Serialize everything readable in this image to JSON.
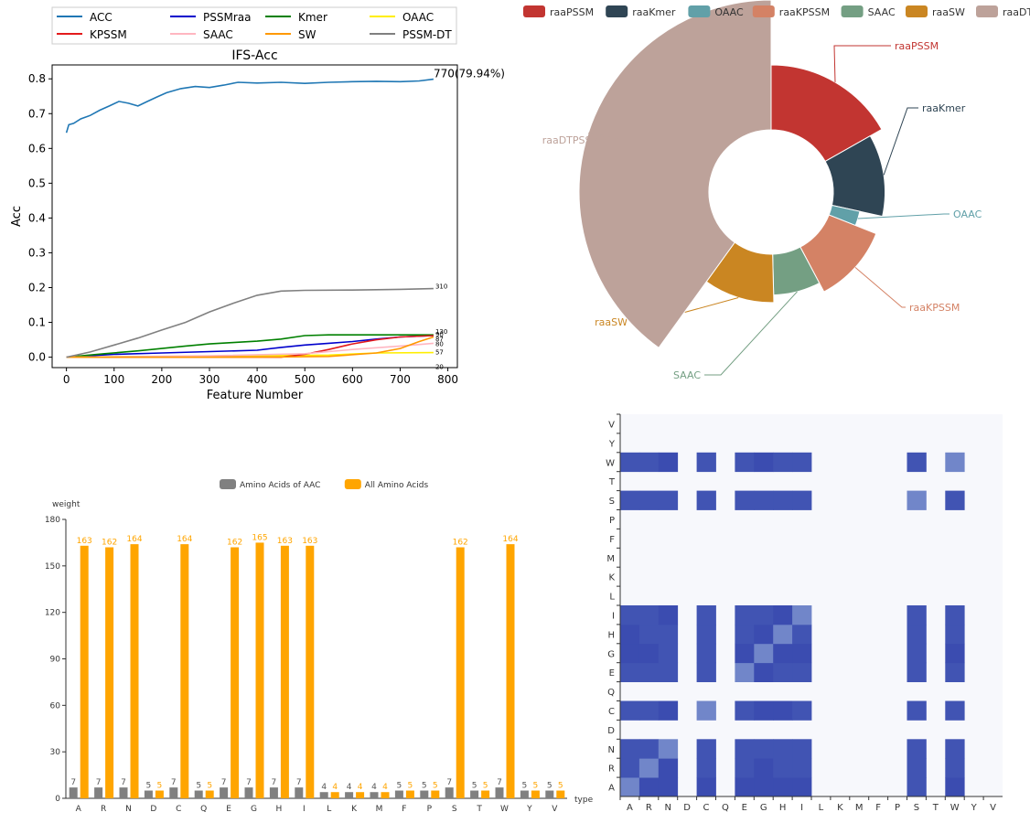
{
  "chart_data": [
    {
      "type": "line",
      "title": "IFS-Acc",
      "xlabel": "Feature Number",
      "ylabel": "Acc",
      "xlim": [
        -30,
        820
      ],
      "ylim": [
        -0.03,
        0.84
      ],
      "xticks": [
        0,
        100,
        200,
        300,
        400,
        500,
        600,
        700,
        800
      ],
      "yticks": [
        0.0,
        0.1,
        0.2,
        0.3,
        0.4,
        0.5,
        0.6,
        0.7,
        0.8
      ],
      "grid": false,
      "legend_position": "top (above plot)",
      "annotation": "770(79.94%)",
      "series": [
        {
          "name": "ACC",
          "color": "#1f77b4",
          "points": [
            [
              0,
              0.645
            ],
            [
              5,
              0.668
            ],
            [
              15,
              0.672
            ],
            [
              30,
              0.685
            ],
            [
              50,
              0.695
            ],
            [
              70,
              0.71
            ],
            [
              90,
              0.722
            ],
            [
              110,
              0.735
            ],
            [
              130,
              0.73
            ],
            [
              150,
              0.722
            ],
            [
              170,
              0.735
            ],
            [
              190,
              0.748
            ],
            [
              210,
              0.76
            ],
            [
              240,
              0.772
            ],
            [
              270,
              0.778
            ],
            [
              300,
              0.775
            ],
            [
              330,
              0.782
            ],
            [
              360,
              0.79
            ],
            [
              400,
              0.788
            ],
            [
              450,
              0.79
            ],
            [
              500,
              0.787
            ],
            [
              550,
              0.79
            ],
            [
              600,
              0.792
            ],
            [
              650,
              0.793
            ],
            [
              700,
              0.792
            ],
            [
              740,
              0.794
            ],
            [
              770,
              0.799
            ]
          ],
          "end_label": ""
        },
        {
          "name": "PSSMraa",
          "color": "#0000cc",
          "points": [
            [
              0,
              0
            ],
            [
              100,
              0.008
            ],
            [
              200,
              0.012
            ],
            [
              300,
              0.016
            ],
            [
              400,
              0.02
            ],
            [
              450,
              0.028
            ],
            [
              500,
              0.035
            ],
            [
              550,
              0.04
            ],
            [
              600,
              0.045
            ],
            [
              650,
              0.052
            ],
            [
              700,
              0.058
            ],
            [
              770,
              0.062
            ]
          ],
          "end_label": "130"
        },
        {
          "name": "Kmer",
          "color": "#008000",
          "points": [
            [
              0,
              0
            ],
            [
              80,
              0.01
            ],
            [
              150,
              0.018
            ],
            [
              200,
              0.025
            ],
            [
              250,
              0.032
            ],
            [
              300,
              0.038
            ],
            [
              350,
              0.042
            ],
            [
              400,
              0.046
            ],
            [
              450,
              0.052
            ],
            [
              500,
              0.062
            ],
            [
              550,
              0.064
            ],
            [
              770,
              0.064
            ]
          ],
          "end_label": "90"
        },
        {
          "name": "OAAC",
          "color": "#ffee00",
          "points": [
            [
              0,
              0
            ],
            [
              200,
              0.002
            ],
            [
              400,
              0.004
            ],
            [
              550,
              0.006
            ],
            [
              650,
              0.012
            ],
            [
              770,
              0.013
            ]
          ],
          "end_label": "20"
        },
        {
          "name": "KPSSM",
          "color": "#e31a1c",
          "points": [
            [
              0,
              0
            ],
            [
              450,
              0
            ],
            [
              500,
              0.008
            ],
            [
              550,
              0.022
            ],
            [
              600,
              0.038
            ],
            [
              650,
              0.05
            ],
            [
              700,
              0.058
            ],
            [
              770,
              0.062
            ]
          ],
          "end_label": "87"
        },
        {
          "name": "SAAC",
          "color": "#ffb6c1",
          "points": [
            [
              0,
              0
            ],
            [
              300,
              0.004
            ],
            [
              500,
              0.01
            ],
            [
              600,
              0.022
            ],
            [
              700,
              0.032
            ],
            [
              770,
              0.04
            ]
          ],
          "end_label": "57"
        },
        {
          "name": "SW",
          "color": "#ff9900",
          "points": [
            [
              0,
              0
            ],
            [
              400,
              0
            ],
            [
              550,
              0.002
            ],
            [
              650,
              0.012
            ],
            [
              700,
              0.025
            ],
            [
              740,
              0.045
            ],
            [
              770,
              0.058
            ]
          ],
          "end_label": "80"
        },
        {
          "name": "PSSM-DT",
          "color": "#808080",
          "points": [
            [
              0,
              0
            ],
            [
              50,
              0.015
            ],
            [
              100,
              0.035
            ],
            [
              150,
              0.055
            ],
            [
              200,
              0.078
            ],
            [
              250,
              0.1
            ],
            [
              300,
              0.13
            ],
            [
              350,
              0.155
            ],
            [
              400,
              0.178
            ],
            [
              450,
              0.19
            ],
            [
              500,
              0.192
            ],
            [
              600,
              0.193
            ],
            [
              700,
              0.195
            ],
            [
              770,
              0.197
            ]
          ],
          "end_label": "310"
        }
      ]
    },
    {
      "type": "pie",
      "subtype": "nightingale-rose",
      "legend_position": "top",
      "slices": [
        {
          "name": "raaPSSM",
          "value": 130,
          "color": "#c23531"
        },
        {
          "name": "raaKmer",
          "value": 90,
          "color": "#2f4554"
        },
        {
          "name": "OAAC",
          "value": 20,
          "color": "#61a0a8"
        },
        {
          "name": "raaKPSSM",
          "value": 87,
          "color": "#d48265"
        },
        {
          "name": "SAAC",
          "value": 57,
          "color": "#749f83"
        },
        {
          "name": "raaSW",
          "value": 80,
          "color": "#ca8622"
        },
        {
          "name": "raaDTPSSM",
          "value": 310,
          "color": "#bda29a"
        }
      ]
    },
    {
      "type": "bar",
      "legend_position": "top",
      "ylabel": "weight",
      "xlabel": "type",
      "ylim": [
        0,
        180
      ],
      "yticks": [
        0,
        30,
        60,
        90,
        120,
        150,
        180
      ],
      "categories": [
        "A",
        "R",
        "N",
        "D",
        "C",
        "Q",
        "E",
        "G",
        "H",
        "I",
        "L",
        "K",
        "M",
        "F",
        "P",
        "S",
        "T",
        "W",
        "Y",
        "V"
      ],
      "series": [
        {
          "name": "Amino Acids of AAC",
          "color": "#808080",
          "values": [
            7,
            7,
            7,
            5,
            7,
            5,
            7,
            7,
            7,
            7,
            4,
            4,
            4,
            5,
            5,
            7,
            5,
            7,
            5,
            5
          ]
        },
        {
          "name": "All Amino Acids",
          "color": "#ffa500",
          "values": [
            163,
            162,
            164,
            5,
            164,
            5,
            162,
            165,
            163,
            163,
            4,
            4,
            4,
            5,
            5,
            162,
            5,
            164,
            5,
            5
          ]
        }
      ]
    },
    {
      "type": "heatmap",
      "x": [
        "A",
        "R",
        "N",
        "D",
        "C",
        "Q",
        "E",
        "G",
        "H",
        "I",
        "L",
        "K",
        "M",
        "F",
        "P",
        "S",
        "T",
        "W",
        "Y",
        "V"
      ],
      "y": [
        "A",
        "R",
        "N",
        "D",
        "C",
        "Q",
        "E",
        "G",
        "H",
        "I",
        "L",
        "K",
        "M",
        "F",
        "P",
        "S",
        "T",
        "W",
        "Y",
        "V"
      ],
      "background": "#f7f8fc",
      "colors": {
        "1": "#4154b3",
        "2": "#3b4cb0",
        "3": "#7186c9"
      },
      "rows": {
        "A": [
          3,
          2,
          2,
          0,
          2,
          0,
          2,
          2,
          2,
          2,
          0,
          0,
          0,
          0,
          0,
          1,
          0,
          2,
          0,
          0
        ],
        "R": [
          1,
          3,
          2,
          0,
          1,
          0,
          1,
          2,
          1,
          1,
          0,
          0,
          0,
          0,
          0,
          1,
          0,
          1,
          0,
          0
        ],
        "N": [
          1,
          1,
          3,
          0,
          1,
          0,
          1,
          1,
          1,
          1,
          0,
          0,
          0,
          0,
          0,
          1,
          0,
          1,
          0,
          0
        ],
        "C": [
          1,
          1,
          2,
          0,
          3,
          0,
          1,
          2,
          2,
          1,
          0,
          0,
          0,
          0,
          0,
          1,
          0,
          1,
          0,
          0
        ],
        "E": [
          1,
          1,
          1,
          0,
          1,
          0,
          3,
          2,
          1,
          1,
          0,
          0,
          0,
          0,
          0,
          1,
          0,
          1,
          0,
          0
        ],
        "G": [
          2,
          2,
          1,
          0,
          1,
          0,
          2,
          3,
          2,
          2,
          0,
          0,
          0,
          0,
          0,
          1,
          0,
          2,
          0,
          0
        ],
        "H": [
          2,
          1,
          1,
          0,
          1,
          0,
          1,
          2,
          3,
          1,
          0,
          0,
          0,
          0,
          0,
          1,
          0,
          1,
          0,
          0
        ],
        "I": [
          1,
          1,
          2,
          0,
          1,
          0,
          1,
          1,
          2,
          3,
          0,
          0,
          0,
          0,
          0,
          1,
          0,
          1,
          0,
          0
        ],
        "S": [
          1,
          1,
          1,
          0,
          1,
          0,
          1,
          1,
          1,
          1,
          0,
          0,
          0,
          0,
          0,
          3,
          0,
          1,
          0,
          0
        ],
        "W": [
          1,
          1,
          2,
          0,
          1,
          0,
          1,
          2,
          1,
          1,
          0,
          0,
          0,
          0,
          0,
          1,
          0,
          3,
          0,
          0
        ]
      }
    }
  ]
}
